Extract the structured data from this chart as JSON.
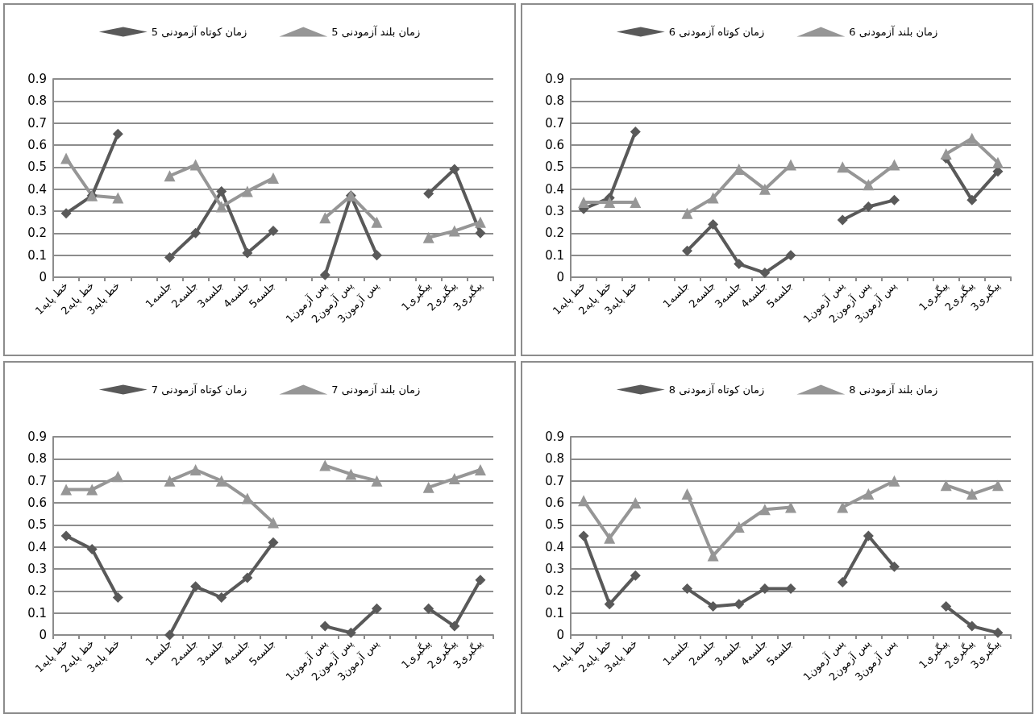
{
  "chart_data": [
    {
      "type": "line",
      "categories": [
        "خط پایه1",
        "خط پایه2",
        "خط پایه3",
        null,
        "جلسه1",
        "جلسه2",
        "جلسه3",
        "جلسه4",
        "جلسه5",
        null,
        "پس آزمون1",
        "پس آزمون2",
        "پس آزمون3",
        null,
        "پیگیری1",
        "پیگیری2",
        "پیگیری3"
      ],
      "series": [
        {
          "name": "زمان کوتاه آزمودنی 5",
          "color": "#595959",
          "marker": "diamond",
          "values": [
            0.29,
            0.37,
            0.65,
            null,
            0.09,
            0.2,
            0.39,
            0.11,
            0.21,
            null,
            0.01,
            0.37,
            0.1,
            null,
            0.38,
            0.49,
            0.2
          ]
        },
        {
          "name": "زمان بلند آزمودنی 5",
          "color": "#969696",
          "marker": "triangle",
          "values": [
            0.54,
            0.37,
            0.36,
            null,
            0.46,
            0.51,
            0.32,
            0.39,
            0.45,
            null,
            0.27,
            0.37,
            0.25,
            null,
            0.18,
            0.21,
            0.25
          ]
        }
      ],
      "ylim": [
        0,
        0.9
      ],
      "yticks": [
        0,
        0.1,
        0.2,
        0.3,
        0.4,
        0.5,
        0.6,
        0.7,
        0.8,
        0.9
      ],
      "grid": "y",
      "legend": "top",
      "line_style": "solid"
    },
    {
      "type": "line",
      "categories": [
        "خط پایه1",
        "خط پایه2",
        "خط پایه3",
        null,
        "جلسه1",
        "جلسه2",
        "جلسه3",
        "جلسه4",
        "جلسه5",
        null,
        "پس آزمون1",
        "پس آزمون2",
        "پس آزمون3",
        null,
        "پیگیری1",
        "پیگیری2",
        "پیگیری3"
      ],
      "series": [
        {
          "name": "زمان کوتاه آزمودنی 6",
          "color": "#595959",
          "marker": "diamond",
          "values": [
            0.31,
            0.36,
            0.66,
            null,
            0.12,
            0.24,
            0.06,
            0.02,
            0.1,
            null,
            0.26,
            0.32,
            0.35,
            null,
            0.54,
            0.35,
            0.48
          ]
        },
        {
          "name": "زمان بلند آزمودنی 6",
          "color": "#969696",
          "marker": "triangle",
          "values": [
            0.34,
            0.34,
            0.34,
            null,
            0.29,
            0.36,
            0.49,
            0.4,
            0.51,
            null,
            0.5,
            0.42,
            0.51,
            null,
            0.56,
            0.63,
            0.52
          ]
        }
      ],
      "ylim": [
        0,
        0.9
      ],
      "yticks": [
        0,
        0.1,
        0.2,
        0.3,
        0.4,
        0.5,
        0.6,
        0.7,
        0.8,
        0.9
      ],
      "grid": "y",
      "legend": "top",
      "line_style": "solid"
    },
    {
      "type": "line",
      "categories": [
        "خط پایه1",
        "خط پایه2",
        "خط پایه3",
        null,
        "جلسه1",
        "جلسه2",
        "جلسه3",
        "جلسه4",
        "جلسه5",
        null,
        "پس آزمون1",
        "پس آزمون2",
        "پس آزمون3",
        null,
        "پیگیری1",
        "پیگیری2",
        "پیگیری3"
      ],
      "series": [
        {
          "name": "زمان کوتاه آزمودنی 7",
          "color": "#595959",
          "marker": "diamond",
          "values": [
            0.45,
            0.39,
            0.17,
            null,
            0.0,
            0.22,
            0.17,
            0.26,
            0.42,
            null,
            0.04,
            0.01,
            0.12,
            null,
            0.12,
            0.04,
            0.25
          ]
        },
        {
          "name": "زمان بلند آزمودنی 7",
          "color": "#969696",
          "marker": "triangle",
          "values": [
            0.66,
            0.66,
            0.72,
            null,
            0.7,
            0.75,
            0.7,
            0.62,
            0.51,
            null,
            0.77,
            0.73,
            0.7,
            null,
            0.67,
            0.71,
            0.75
          ]
        }
      ],
      "ylim": [
        0,
        0.9
      ],
      "yticks": [
        0,
        0.1,
        0.2,
        0.3,
        0.4,
        0.5,
        0.6,
        0.7,
        0.8,
        0.9
      ],
      "grid": "y",
      "legend": "top",
      "line_style": "solid"
    },
    {
      "type": "line",
      "categories": [
        "خط پایه1",
        "خط پایه2",
        "خط پایه3",
        null,
        "جلسه1",
        "جلسه2",
        "جلسه3",
        "جلسه4",
        "جلسه5",
        null,
        "پس آزمون1",
        "پس آزمون2",
        "پس آزمون3",
        null,
        "پیگیری1",
        "پیگیری2",
        "پیگیری3"
      ],
      "series": [
        {
          "name": "زمان کوتاه آزمودنی 8",
          "color": "#595959",
          "marker": "diamond",
          "values": [
            0.45,
            0.14,
            0.27,
            null,
            0.21,
            0.13,
            0.14,
            0.21,
            0.21,
            null,
            0.24,
            0.45,
            0.31,
            null,
            0.13,
            0.04,
            0.01
          ]
        },
        {
          "name": "زمان بلند آزمودنی 8",
          "color": "#969696",
          "marker": "triangle",
          "values": [
            0.61,
            0.44,
            0.6,
            null,
            0.64,
            0.36,
            0.49,
            0.57,
            0.58,
            null,
            0.58,
            0.64,
            0.7,
            null,
            0.68,
            0.64,
            0.68
          ]
        }
      ],
      "ylim": [
        0,
        0.9
      ],
      "yticks": [
        0,
        0.1,
        0.2,
        0.3,
        0.4,
        0.5,
        0.6,
        0.7,
        0.8,
        0.9
      ],
      "grid": "y",
      "legend": "top",
      "line_style": "solid"
    }
  ]
}
